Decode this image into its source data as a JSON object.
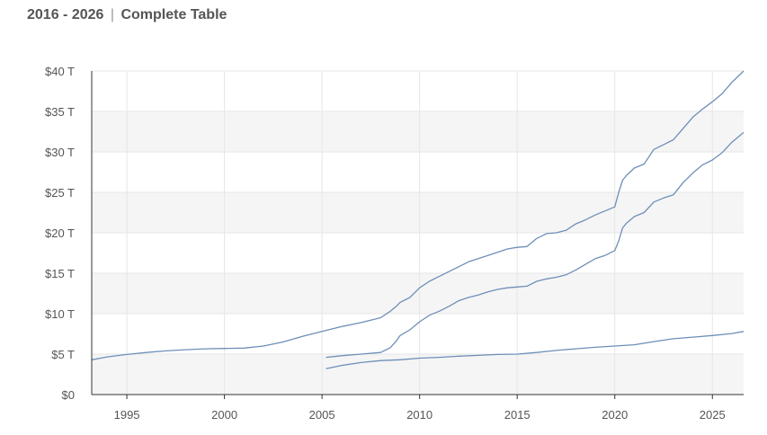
{
  "header": {
    "range": "2016 - 2026",
    "separator": "|",
    "title": "Complete Table"
  },
  "colors": {
    "line": "#6e8fb8",
    "band": "#f5f5f5",
    "grid": "#e6e6e6",
    "axis": "#333333"
  },
  "chart_data": {
    "type": "line",
    "title": "",
    "xlabel": "",
    "ylabel": "",
    "xlim": [
      1993.2,
      2026.6
    ],
    "ylim": [
      0,
      40
    ],
    "x_ticks": [
      1995,
      2000,
      2005,
      2010,
      2015,
      2020,
      2025
    ],
    "y_ticks": [
      0,
      5,
      10,
      15,
      20,
      25,
      30,
      35,
      40
    ],
    "y_tick_labels": [
      "$0",
      "$5 T",
      "$10 T",
      "$15 T",
      "$20 T",
      "$25 T",
      "$30 T",
      "$35 T",
      "$40 T"
    ],
    "grid": true,
    "legend": "none",
    "series": [
      {
        "x": [
          1993.2,
          1994,
          1995,
          1996,
          1997,
          1998,
          1999,
          2000,
          2001,
          2002,
          2003,
          2004,
          2005,
          2006,
          2007,
          2008,
          2008.5,
          2008.8,
          2009,
          2009.5,
          2010,
          2010.5,
          2011,
          2011.5,
          2012,
          2012.5,
          2013,
          2013.5,
          2014,
          2014.5,
          2015,
          2015.5,
          2016,
          2016.5,
          2017,
          2017.5,
          2018,
          2018.5,
          2019,
          2019.5,
          2020,
          2020.2,
          2020.4,
          2020.6,
          2021,
          2021.5,
          2022,
          2022.5,
          2023,
          2023.5,
          2024,
          2024.5,
          2025,
          2025.5,
          2026,
          2026.6
        ],
        "y": [
          4.3,
          4.65,
          4.95,
          5.2,
          5.4,
          5.55,
          5.65,
          5.7,
          5.75,
          6.0,
          6.5,
          7.2,
          7.8,
          8.4,
          8.9,
          9.5,
          10.3,
          10.9,
          11.4,
          12.0,
          13.2,
          14.0,
          14.6,
          15.2,
          15.8,
          16.4,
          16.8,
          17.2,
          17.6,
          18.0,
          18.2,
          18.3,
          19.3,
          19.9,
          20.0,
          20.3,
          21.1,
          21.6,
          22.2,
          22.7,
          23.2,
          25.0,
          26.5,
          27.1,
          28.0,
          28.5,
          30.3,
          30.9,
          31.5,
          32.9,
          34.3,
          35.3,
          36.2,
          37.2,
          38.6,
          40.0
        ]
      },
      {
        "x": [
          2005.2,
          2006,
          2007,
          2008,
          2008.5,
          2008.8,
          2009,
          2009.5,
          2010,
          2010.5,
          2011,
          2011.5,
          2012,
          2012.5,
          2013,
          2013.5,
          2014,
          2014.5,
          2015,
          2015.5,
          2016,
          2016.5,
          2017,
          2017.5,
          2018,
          2018.5,
          2019,
          2019.5,
          2020,
          2020.2,
          2020.4,
          2020.6,
          2021,
          2021.5,
          2022,
          2022.5,
          2023,
          2023.5,
          2024,
          2024.5,
          2025,
          2025.5,
          2026,
          2026.6
        ],
        "y": [
          4.6,
          4.8,
          5.0,
          5.2,
          5.8,
          6.6,
          7.3,
          8.0,
          9.0,
          9.8,
          10.3,
          10.9,
          11.6,
          12.0,
          12.3,
          12.7,
          13.0,
          13.2,
          13.3,
          13.4,
          14.0,
          14.3,
          14.5,
          14.8,
          15.4,
          16.1,
          16.8,
          17.2,
          17.8,
          19.0,
          20.6,
          21.2,
          22.0,
          22.5,
          23.8,
          24.3,
          24.7,
          26.2,
          27.4,
          28.4,
          29.0,
          29.9,
          31.2,
          32.4
        ]
      },
      {
        "x": [
          2005.2,
          2006,
          2007,
          2008,
          2009,
          2010,
          2011,
          2012,
          2013,
          2014,
          2015,
          2016,
          2017,
          2018,
          2019,
          2020,
          2021,
          2022,
          2023,
          2024,
          2025,
          2026,
          2026.6
        ],
        "y": [
          3.2,
          3.6,
          3.95,
          4.2,
          4.3,
          4.5,
          4.6,
          4.75,
          4.85,
          4.95,
          5.0,
          5.2,
          5.45,
          5.65,
          5.85,
          6.0,
          6.15,
          6.55,
          6.9,
          7.1,
          7.3,
          7.55,
          7.8
        ]
      }
    ]
  }
}
